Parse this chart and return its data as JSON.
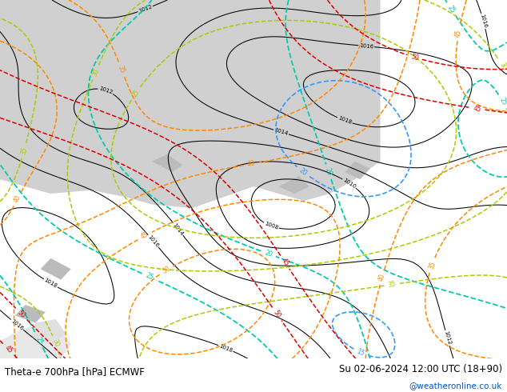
{
  "title_left": "Theta-e 700hPa [hPa] ECMWF",
  "title_right": "Su 02-06-2024 12:00 UTC (18+90)",
  "watermark": "@weatheronline.co.uk",
  "bottom_bar_color": "#ffffff",
  "title_color": "#000000",
  "watermark_color": "#0055cc",
  "fig_width": 6.34,
  "fig_height": 4.9,
  "dpi": 100,
  "map_gray": "#d0d0d0",
  "map_green": "#c8e8a0",
  "map_green2": "#b8e090"
}
